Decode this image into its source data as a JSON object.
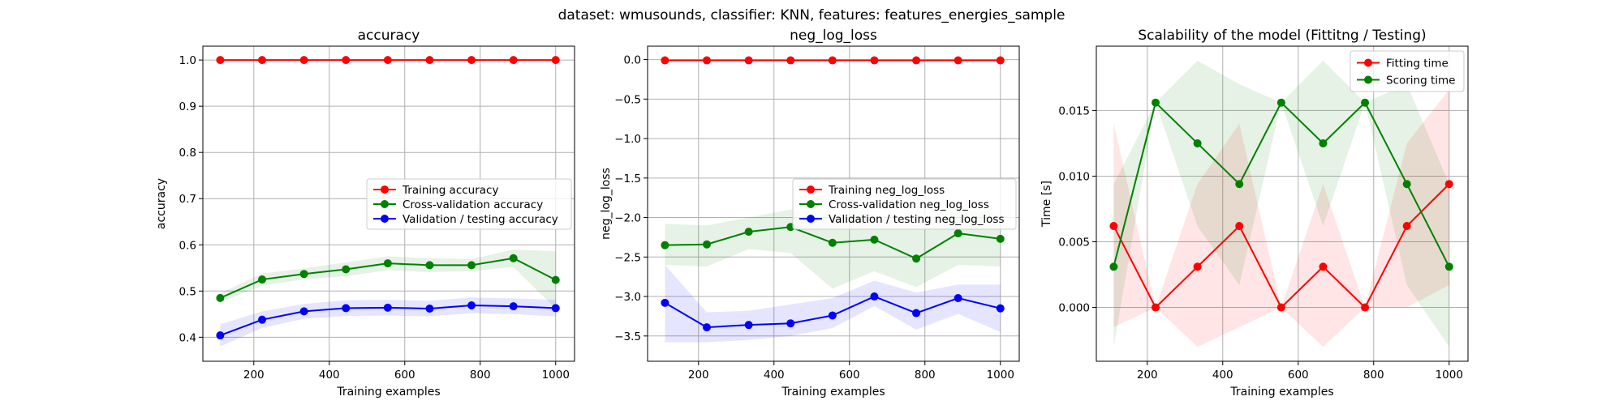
{
  "suptitle": "dataset: wmusounds, classifier: KNN, features: features_energies_sample",
  "colors": {
    "training": "#ff0000",
    "cv": "#008000",
    "test": "#0000ff"
  },
  "chart_data": [
    {
      "type": "line",
      "title": "accuracy",
      "xlabel": "Training examples",
      "ylabel": "accuracy",
      "xlim": [
        65,
        1050
      ],
      "ylim": [
        0.348,
        1.03
      ],
      "xticks": [
        200,
        400,
        600,
        800,
        1000
      ],
      "xtick_labels": [
        "200",
        "400",
        "600",
        "800",
        "1000"
      ],
      "yticks": [
        0.4,
        0.5,
        0.6,
        0.7,
        0.8,
        0.9,
        1.0
      ],
      "ytick_labels": [
        "0.4",
        "0.5",
        "0.6",
        "0.7",
        "0.8",
        "0.9",
        "1.0"
      ],
      "grid": true,
      "legend_position": "center-right",
      "x": [
        111,
        222,
        333,
        444,
        555,
        666,
        777,
        888,
        1000
      ],
      "series": [
        {
          "name": "Training accuracy",
          "color": "#ff0000",
          "values": [
            1.0,
            1.0,
            1.0,
            1.0,
            1.0,
            1.0,
            1.0,
            1.0,
            1.0
          ],
          "lower": [
            1.0,
            1.0,
            1.0,
            1.0,
            1.0,
            1.0,
            1.0,
            1.0,
            1.0
          ],
          "upper": [
            1.0,
            1.0,
            1.0,
            1.0,
            1.0,
            1.0,
            1.0,
            1.0,
            1.0
          ]
        },
        {
          "name": "Cross-validation accuracy",
          "color": "#008000",
          "values": [
            0.485,
            0.525,
            0.537,
            0.547,
            0.56,
            0.556,
            0.556,
            0.571,
            0.524
          ],
          "lower": [
            0.475,
            0.512,
            0.525,
            0.532,
            0.545,
            0.541,
            0.543,
            0.552,
            0.462
          ],
          "upper": [
            0.495,
            0.538,
            0.549,
            0.562,
            0.575,
            0.571,
            0.569,
            0.59,
            0.586
          ]
        },
        {
          "name": "Validation / testing accuracy",
          "color": "#0000ff",
          "values": [
            0.404,
            0.438,
            0.456,
            0.463,
            0.464,
            0.462,
            0.469,
            0.467,
            0.463
          ],
          "lower": [
            0.38,
            0.42,
            0.44,
            0.446,
            0.447,
            0.445,
            0.452,
            0.45,
            0.445
          ],
          "upper": [
            0.428,
            0.456,
            0.472,
            0.48,
            0.481,
            0.479,
            0.486,
            0.484,
            0.481
          ]
        }
      ]
    },
    {
      "type": "line",
      "title": "neg_log_loss",
      "xlabel": "Training examples",
      "ylabel": "neg_log_loss",
      "xlim": [
        65,
        1050
      ],
      "ylim": [
        -3.82,
        0.17
      ],
      "xticks": [
        200,
        400,
        600,
        800,
        1000
      ],
      "xtick_labels": [
        "200",
        "400",
        "600",
        "800",
        "1000"
      ],
      "yticks": [
        -3.5,
        -3.0,
        -2.5,
        -2.0,
        -1.5,
        -1.0,
        -0.5,
        0.0
      ],
      "ytick_labels": [
        "−3.5",
        "−3.0",
        "−2.5",
        "−2.0",
        "−1.5",
        "−1.0",
        "−0.5",
        "0.0"
      ],
      "grid": true,
      "legend_position": "center-right",
      "x": [
        111,
        222,
        333,
        444,
        555,
        666,
        777,
        888,
        1000
      ],
      "series": [
        {
          "name": "Training neg_log_loss",
          "color": "#ff0000",
          "values": [
            -0.01,
            -0.01,
            -0.01,
            -0.01,
            -0.01,
            -0.01,
            -0.01,
            -0.01,
            -0.01
          ],
          "lower": [
            -0.02,
            -0.02,
            -0.02,
            -0.02,
            -0.02,
            -0.02,
            -0.02,
            -0.02,
            -0.02
          ],
          "upper": [
            0.0,
            0.0,
            0.0,
            0.0,
            0.0,
            0.0,
            0.0,
            0.0,
            0.0
          ]
        },
        {
          "name": "Cross-validation neg_log_loss",
          "color": "#008000",
          "values": [
            -2.35,
            -2.34,
            -2.18,
            -2.12,
            -2.32,
            -2.28,
            -2.52,
            -2.2,
            -2.27
          ],
          "lower": [
            -2.6,
            -2.62,
            -2.4,
            -2.45,
            -2.9,
            -2.68,
            -2.88,
            -2.6,
            -2.62
          ],
          "upper": [
            -2.08,
            -2.1,
            -2.0,
            -1.9,
            -1.95,
            -1.95,
            -2.1,
            -1.9,
            -1.95
          ]
        },
        {
          "name": "Validation / testing neg_log_loss",
          "color": "#0000ff",
          "values": [
            -3.08,
            -3.39,
            -3.36,
            -3.34,
            -3.24,
            -3.0,
            -3.21,
            -3.02,
            -3.15
          ],
          "lower": [
            -3.58,
            -3.58,
            -3.55,
            -3.5,
            -3.4,
            -3.12,
            -3.42,
            -3.22,
            -3.45
          ],
          "upper": [
            -2.6,
            -3.2,
            -3.18,
            -3.1,
            -3.02,
            -2.8,
            -2.95,
            -2.85,
            -2.85
          ]
        }
      ]
    },
    {
      "type": "line",
      "title": "Scalability of the model (Fittitng / Testing)",
      "xlabel": "Training examples",
      "ylabel": "Time [s]",
      "xlim": [
        65,
        1050
      ],
      "ylim": [
        -0.0041,
        0.0199
      ],
      "xticks": [
        200,
        400,
        600,
        800,
        1000
      ],
      "xtick_labels": [
        "200",
        "400",
        "600",
        "800",
        "1000"
      ],
      "yticks": [
        0.0,
        0.005,
        0.01,
        0.015
      ],
      "ytick_labels": [
        "0.000",
        "0.005",
        "0.010",
        "0.015"
      ],
      "grid": true,
      "legend_position": "upper-right",
      "x": [
        111,
        222,
        333,
        444,
        555,
        666,
        777,
        888,
        1000
      ],
      "series": [
        {
          "name": "Fitting time",
          "color": "#ff0000",
          "values": [
            0.0062,
            0.0,
            0.0031,
            0.0062,
            0.0,
            0.0031,
            0.0,
            0.0062,
            0.0094
          ],
          "lower": [
            -0.0015,
            0.0,
            -0.003,
            -0.0015,
            0.0,
            -0.003,
            0.0,
            0.0,
            0.0017
          ],
          "upper": [
            0.014,
            0.0,
            0.0094,
            0.014,
            0.0,
            0.0094,
            0.0,
            0.0125,
            0.0166
          ]
        },
        {
          "name": "Scoring time",
          "color": "#008000",
          "values": [
            0.0031,
            0.0156,
            0.0125,
            0.0094,
            0.0156,
            0.0125,
            0.0156,
            0.0094,
            0.0031
          ],
          "lower": [
            -0.003,
            0.0156,
            0.0062,
            0.0017,
            0.0156,
            0.0062,
            0.0156,
            0.0017,
            -0.003
          ],
          "upper": [
            0.0094,
            0.0156,
            0.0188,
            0.017,
            0.0156,
            0.0188,
            0.0156,
            0.017,
            0.0094
          ]
        }
      ]
    }
  ]
}
